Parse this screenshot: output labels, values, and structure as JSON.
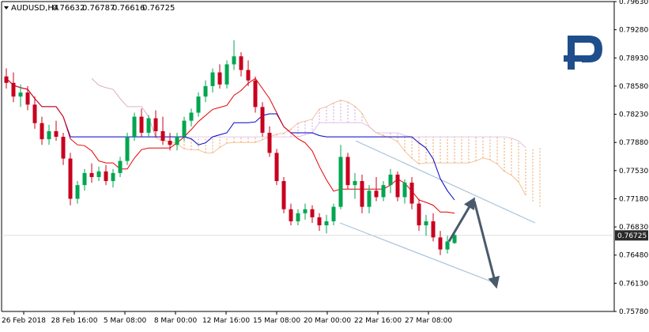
{
  "chart_data": {
    "type": "candlestick",
    "symbol": "AUDUSD,H4",
    "ohlc_readout": [
      "0.76632",
      "0.76787",
      "0.76616",
      "0.76725"
    ],
    "current_price": "0.76725",
    "ylim": [
      0.7578,
      0.7963
    ],
    "y_ticks": [
      "0.79630",
      "0.79280",
      "0.78930",
      "0.78580",
      "0.78230",
      "0.77880",
      "0.77530",
      "0.77180",
      "0.76830",
      "0.76480",
      "0.76130",
      "0.75780"
    ],
    "x_ticks": [
      "26 Feb 2018",
      "28 Feb 16:00",
      "5 Mar 08:00",
      "8 Mar 00:00",
      "12 Mar 16:00",
      "15 Mar 08:00",
      "20 Mar 00:00",
      "22 Mar 16:00",
      "27 Mar 08:00"
    ],
    "candles": [
      [
        0.787,
        0.788,
        0.7855,
        0.7862
      ],
      [
        0.7862,
        0.7875,
        0.7838,
        0.7845
      ],
      [
        0.7845,
        0.786,
        0.7832,
        0.785
      ],
      [
        0.785,
        0.7858,
        0.7828,
        0.7835
      ],
      [
        0.7835,
        0.7845,
        0.7805,
        0.7812
      ],
      [
        0.7812,
        0.782,
        0.7785,
        0.7792
      ],
      [
        0.7792,
        0.781,
        0.7785,
        0.7802
      ],
      [
        0.7802,
        0.7815,
        0.779,
        0.7795
      ],
      [
        0.7795,
        0.78,
        0.776,
        0.7768
      ],
      [
        0.7768,
        0.7775,
        0.771,
        0.7718
      ],
      [
        0.7718,
        0.774,
        0.7712,
        0.7735
      ],
      [
        0.7735,
        0.7755,
        0.7728,
        0.775
      ],
      [
        0.775,
        0.7762,
        0.7738,
        0.7745
      ],
      [
        0.7745,
        0.7758,
        0.774,
        0.7752
      ],
      [
        0.7752,
        0.776,
        0.7735,
        0.774
      ],
      [
        0.774,
        0.7755,
        0.7732,
        0.775
      ],
      [
        0.775,
        0.777,
        0.7745,
        0.7765
      ],
      [
        0.7765,
        0.78,
        0.776,
        0.7795
      ],
      [
        0.7795,
        0.7825,
        0.779,
        0.782
      ],
      [
        0.782,
        0.783,
        0.7795,
        0.78
      ],
      [
        0.78,
        0.7822,
        0.7795,
        0.7818
      ],
      [
        0.7818,
        0.7828,
        0.7795,
        0.7802
      ],
      [
        0.7802,
        0.782,
        0.7785,
        0.779
      ],
      [
        0.779,
        0.78,
        0.7778,
        0.7785
      ],
      [
        0.7785,
        0.78,
        0.7778,
        0.7795
      ],
      [
        0.7795,
        0.782,
        0.779,
        0.7815
      ],
      [
        0.7815,
        0.783,
        0.7808,
        0.7825
      ],
      [
        0.7825,
        0.785,
        0.782,
        0.7845
      ],
      [
        0.7845,
        0.7865,
        0.7838,
        0.7858
      ],
      [
        0.7858,
        0.788,
        0.785,
        0.7875
      ],
      [
        0.7875,
        0.7885,
        0.7855,
        0.786
      ],
      [
        0.786,
        0.789,
        0.7855,
        0.7885
      ],
      [
        0.7885,
        0.7915,
        0.7878,
        0.7895
      ],
      [
        0.7895,
        0.79,
        0.787,
        0.7878
      ],
      [
        0.7878,
        0.789,
        0.7858,
        0.7865
      ],
      [
        0.7865,
        0.787,
        0.7825,
        0.7832
      ],
      [
        0.7832,
        0.7838,
        0.7795,
        0.78
      ],
      [
        0.78,
        0.7808,
        0.777,
        0.7775
      ],
      [
        0.7775,
        0.778,
        0.7735,
        0.774
      ],
      [
        0.774,
        0.7745,
        0.77,
        0.7705
      ],
      [
        0.7705,
        0.7712,
        0.7685,
        0.769
      ],
      [
        0.769,
        0.7705,
        0.7685,
        0.77
      ],
      [
        0.77,
        0.7712,
        0.7692,
        0.7705
      ],
      [
        0.7705,
        0.771,
        0.7688,
        0.7695
      ],
      [
        0.7695,
        0.77,
        0.7678,
        0.7685
      ],
      [
        0.7685,
        0.7698,
        0.7675,
        0.769
      ],
      [
        0.769,
        0.7712,
        0.7685,
        0.7708
      ],
      [
        0.7708,
        0.7785,
        0.7705,
        0.777
      ],
      [
        0.777,
        0.7775,
        0.773,
        0.7735
      ],
      [
        0.7735,
        0.775,
        0.7718,
        0.774
      ],
      [
        0.774,
        0.7748,
        0.77,
        0.7708
      ],
      [
        0.7708,
        0.7735,
        0.77,
        0.7728
      ],
      [
        0.7728,
        0.7745,
        0.7715,
        0.772
      ],
      [
        0.772,
        0.774,
        0.7715,
        0.7735
      ],
      [
        0.7735,
        0.7755,
        0.7725,
        0.7748
      ],
      [
        0.7748,
        0.7752,
        0.7715,
        0.772
      ],
      [
        0.772,
        0.7742,
        0.7712,
        0.7738
      ],
      [
        0.7738,
        0.7745,
        0.7705,
        0.7712
      ],
      [
        0.7712,
        0.7718,
        0.7678,
        0.7685
      ],
      [
        0.7685,
        0.7698,
        0.7672,
        0.769
      ],
      [
        0.769,
        0.77,
        0.7665,
        0.767
      ],
      [
        0.767,
        0.7678,
        0.7648,
        0.7655
      ],
      [
        0.7655,
        0.7672,
        0.765,
        0.7665
      ],
      [
        0.7663,
        0.7679,
        0.7662,
        0.7673
      ]
    ],
    "colors": {
      "bull": "#00a651",
      "bear": "#c8001e",
      "tenkan": "#e60000",
      "kijun": "#0000c8",
      "kumo_up": "#d0a0e0",
      "kumo_down": "#f0a060",
      "channel": "#aac4dc",
      "arrow": "#4a5a6a",
      "price_tag": "#2b2b2b",
      "logo": "#1f4e8c"
    }
  }
}
